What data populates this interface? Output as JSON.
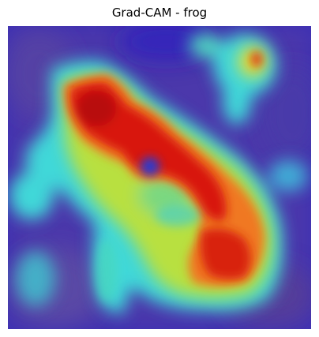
{
  "figure": {
    "title": "Grad-CAM - frog"
  },
  "heatmap": {
    "colormap": "jet",
    "colors": {
      "low": "#2a1fb8",
      "mid_low": "#3fd6d0",
      "mid": "#9be05a",
      "mid_high": "#f0d020",
      "high": "#e02010",
      "peak": "#b80a0a"
    }
  }
}
